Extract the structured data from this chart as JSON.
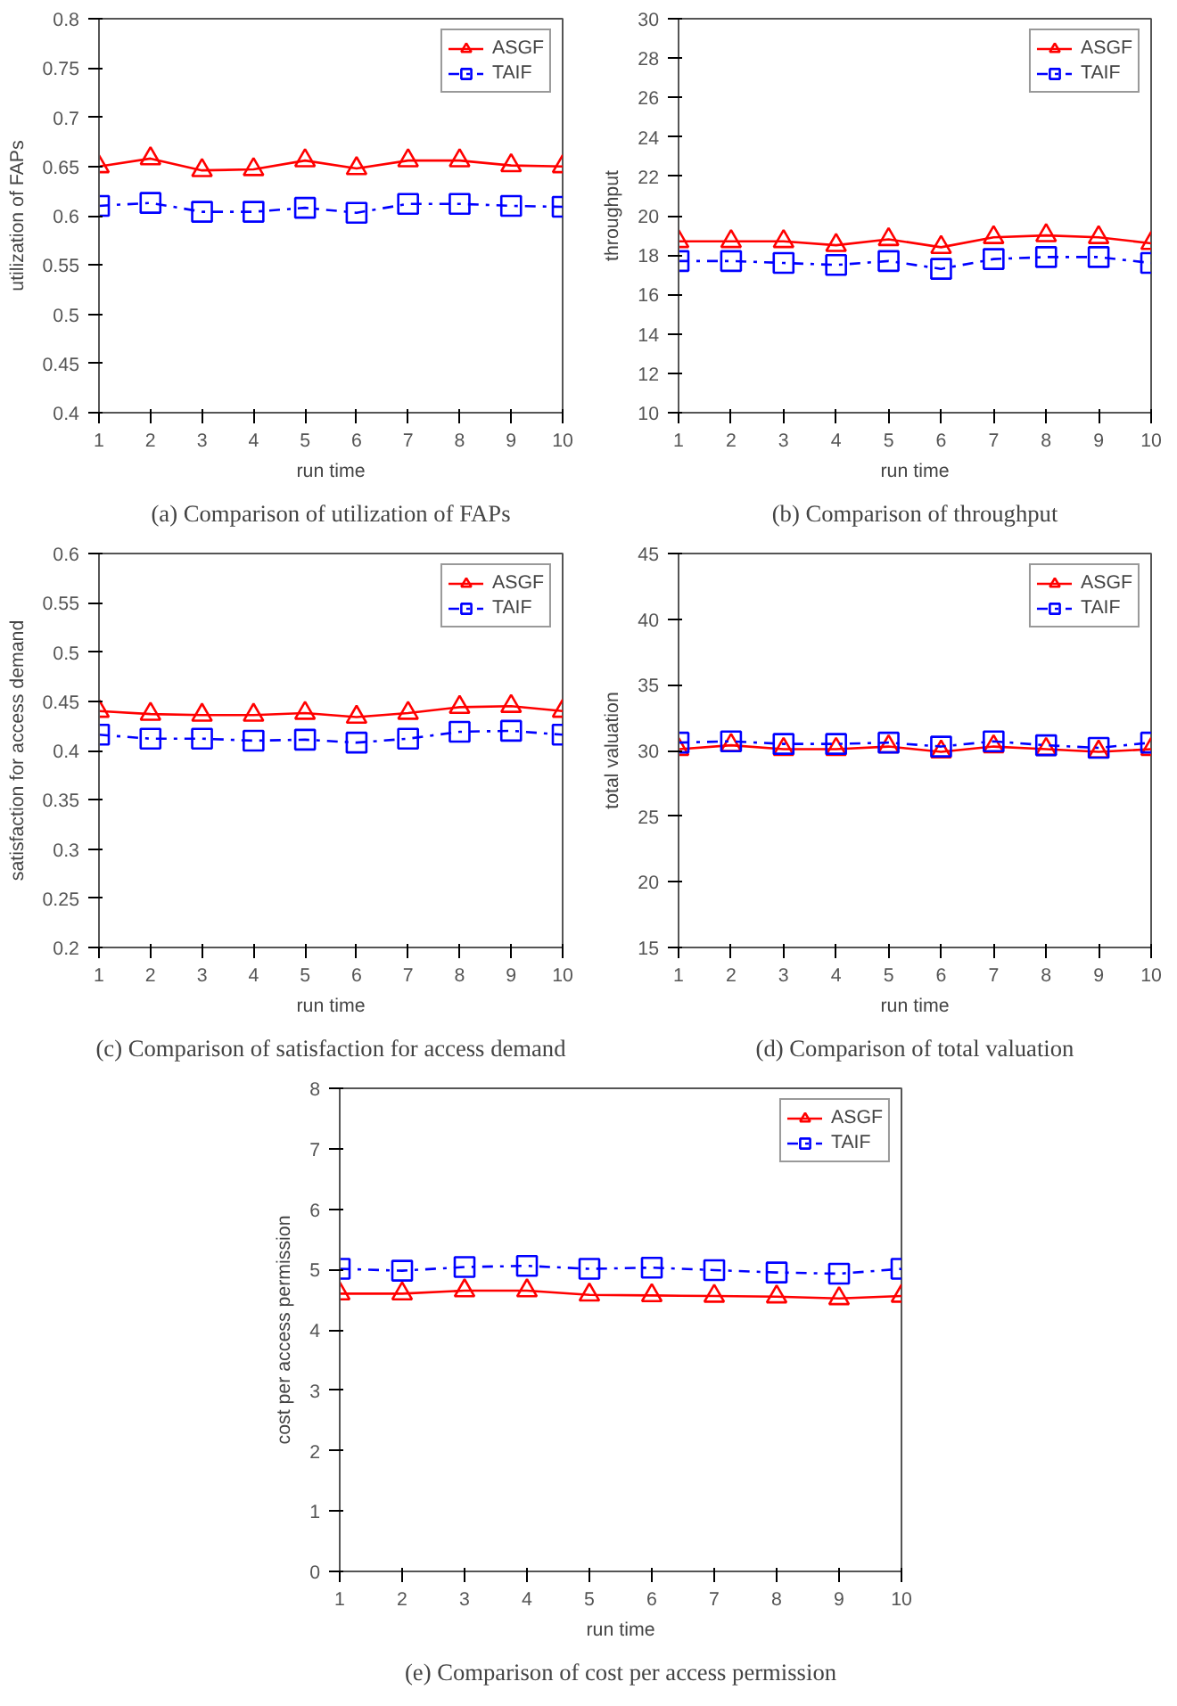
{
  "chart_data": [
    {
      "type": "line",
      "title": "(a) Comparison of utilization of FAPs",
      "xlabel": "run time",
      "ylabel": "utilization of FAPs",
      "x": [
        1,
        2,
        3,
        4,
        5,
        6,
        7,
        8,
        9,
        10
      ],
      "xlim": [
        1,
        10
      ],
      "xticks": [
        1,
        2,
        3,
        4,
        5,
        6,
        7,
        8,
        9,
        10
      ],
      "ylim": [
        0.4,
        0.8
      ],
      "yticks": [
        0.4,
        0.45,
        0.5,
        0.55,
        0.6,
        0.65,
        0.7,
        0.75,
        0.8
      ],
      "grid": false,
      "legend": "top right",
      "series": [
        {
          "name": "ASGF",
          "color": "#ff0000",
          "marker": "triangle",
          "line_style": "solid",
          "values": [
            0.65,
            0.658,
            0.646,
            0.647,
            0.656,
            0.648,
            0.656,
            0.656,
            0.651,
            0.65
          ]
        },
        {
          "name": "TAIF",
          "color": "#0000ff",
          "marker": "square",
          "line_style": "dashdot",
          "values": [
            0.61,
            0.613,
            0.604,
            0.604,
            0.608,
            0.603,
            0.612,
            0.612,
            0.61,
            0.609
          ]
        }
      ]
    },
    {
      "type": "line",
      "title": "(b) Comparison of throughput",
      "xlabel": "run time",
      "ylabel": "throughput",
      "x": [
        1,
        2,
        3,
        4,
        5,
        6,
        7,
        8,
        9,
        10
      ],
      "xlim": [
        1,
        10
      ],
      "xticks": [
        1,
        2,
        3,
        4,
        5,
        6,
        7,
        8,
        9,
        10
      ],
      "ylim": [
        10,
        30
      ],
      "yticks": [
        10,
        12,
        14,
        16,
        18,
        20,
        22,
        24,
        26,
        28,
        30
      ],
      "grid": false,
      "legend": "top right",
      "series": [
        {
          "name": "ASGF",
          "color": "#ff0000",
          "marker": "triangle",
          "line_style": "solid",
          "values": [
            18.7,
            18.7,
            18.7,
            18.5,
            18.8,
            18.4,
            18.9,
            19.0,
            18.9,
            18.6
          ]
        },
        {
          "name": "TAIF",
          "color": "#0000ff",
          "marker": "square",
          "line_style": "dashdot",
          "values": [
            17.7,
            17.7,
            17.6,
            17.5,
            17.7,
            17.3,
            17.8,
            17.9,
            17.9,
            17.6
          ]
        }
      ]
    },
    {
      "type": "line",
      "title": "(c) Comparison of satisfaction for access demand",
      "xlabel": "run time",
      "ylabel": "satisfaction for access demand",
      "x": [
        1,
        2,
        3,
        4,
        5,
        6,
        7,
        8,
        9,
        10
      ],
      "xlim": [
        1,
        10
      ],
      "xticks": [
        1,
        2,
        3,
        4,
        5,
        6,
        7,
        8,
        9,
        10
      ],
      "ylim": [
        0.2,
        0.6
      ],
      "yticks": [
        0.2,
        0.25,
        0.3,
        0.35,
        0.4,
        0.45,
        0.5,
        0.55,
        0.6
      ],
      "grid": false,
      "legend": "top right",
      "series": [
        {
          "name": "ASGF",
          "color": "#ff0000",
          "marker": "triangle",
          "line_style": "solid",
          "values": [
            0.44,
            0.437,
            0.436,
            0.436,
            0.438,
            0.434,
            0.438,
            0.444,
            0.445,
            0.44
          ]
        },
        {
          "name": "TAIF",
          "color": "#0000ff",
          "marker": "square",
          "line_style": "dashdot",
          "values": [
            0.416,
            0.412,
            0.412,
            0.41,
            0.411,
            0.408,
            0.412,
            0.419,
            0.42,
            0.416
          ]
        }
      ]
    },
    {
      "type": "line",
      "title": "(d) Comparison of total valuation",
      "xlabel": "run time",
      "ylabel": "total valuation",
      "x": [
        1,
        2,
        3,
        4,
        5,
        6,
        7,
        8,
        9,
        10
      ],
      "xlim": [
        1,
        10
      ],
      "xticks": [
        1,
        2,
        3,
        4,
        5,
        6,
        7,
        8,
        9,
        10
      ],
      "ylim": [
        15,
        45
      ],
      "yticks": [
        15,
        20,
        25,
        30,
        35,
        40,
        45
      ],
      "grid": false,
      "legend": "top right",
      "series": [
        {
          "name": "ASGF",
          "color": "#ff0000",
          "marker": "triangle",
          "line_style": "solid",
          "values": [
            30.1,
            30.4,
            30.1,
            30.1,
            30.3,
            29.9,
            30.3,
            30.1,
            29.9,
            30.1
          ]
        },
        {
          "name": "TAIF",
          "color": "#0000ff",
          "marker": "square",
          "line_style": "dashdot",
          "values": [
            30.6,
            30.7,
            30.5,
            30.5,
            30.6,
            30.3,
            30.7,
            30.4,
            30.2,
            30.6
          ]
        }
      ]
    },
    {
      "type": "line",
      "title": "(e) Comparison of cost per access permission",
      "xlabel": "run time",
      "ylabel": "cost per access permission",
      "x": [
        1,
        2,
        3,
        4,
        5,
        6,
        7,
        8,
        9,
        10
      ],
      "xlim": [
        1,
        10
      ],
      "xticks": [
        1,
        2,
        3,
        4,
        5,
        6,
        7,
        8,
        9,
        10
      ],
      "ylim": [
        0,
        8
      ],
      "yticks": [
        0,
        1,
        2,
        3,
        4,
        5,
        6,
        7,
        8
      ],
      "grid": false,
      "legend": "top right",
      "series": [
        {
          "name": "ASGF",
          "color": "#ff0000",
          "marker": "triangle",
          "line_style": "solid",
          "values": [
            4.6,
            4.6,
            4.65,
            4.65,
            4.58,
            4.57,
            4.56,
            4.55,
            4.52,
            4.56
          ]
        },
        {
          "name": "TAIF",
          "color": "#0000ff",
          "marker": "square",
          "line_style": "dashdot",
          "values": [
            5.01,
            4.98,
            5.04,
            5.06,
            5.01,
            5.03,
            4.99,
            4.95,
            4.93,
            5.01
          ]
        }
      ]
    }
  ]
}
